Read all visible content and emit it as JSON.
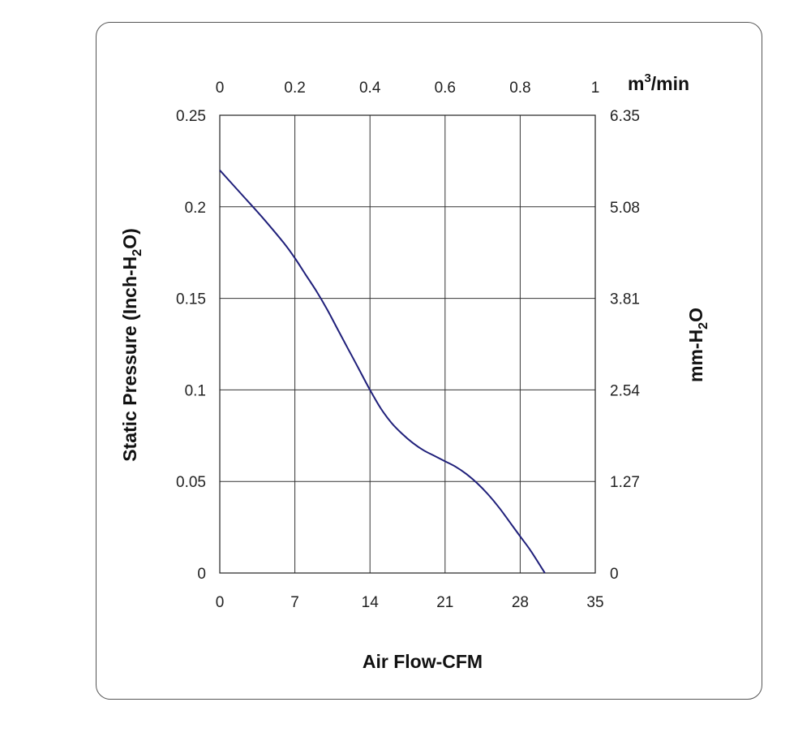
{
  "chart_data": {
    "type": "line",
    "xlabel": "Air Flow-CFM",
    "ylabel_parts": [
      "Static Pressure (Inch-H",
      "2",
      "O)"
    ],
    "y2label_parts": [
      "mm-H",
      "2",
      "O"
    ],
    "x2label_parts": [
      "m",
      "3",
      "/min"
    ],
    "xlim": [
      0,
      35
    ],
    "ylim": [
      0,
      0.25
    ],
    "x_ticks": [
      "0",
      "7",
      "14",
      "21",
      "28",
      "35"
    ],
    "y_ticks": [
      "0",
      "0.05",
      "0.1",
      "0.15",
      "0.2",
      "0.25"
    ],
    "x2_ticks": [
      "0",
      "0.2",
      "0.4",
      "0.6",
      "0.8",
      "1"
    ],
    "y2_ticks": [
      "0",
      "1.27",
      "2.54",
      "3.81",
      "5.08",
      "6.35"
    ],
    "grid": true,
    "line_color": "#1f1f7a",
    "series": [
      {
        "x": [
          0,
          2,
          4,
          6,
          7,
          8,
          9,
          10,
          11,
          12,
          13,
          14,
          15,
          16,
          17,
          18,
          19,
          20,
          21,
          22,
          23,
          24,
          25,
          26,
          27,
          28,
          29,
          30.3
        ],
        "y": [
          0.22,
          0.207,
          0.194,
          0.18,
          0.172,
          0.163,
          0.154,
          0.144,
          0.133,
          0.122,
          0.111,
          0.1,
          0.09,
          0.082,
          0.076,
          0.071,
          0.067,
          0.064,
          0.061,
          0.058,
          0.054,
          0.049,
          0.043,
          0.036,
          0.028,
          0.02,
          0.012,
          0.0
        ]
      }
    ]
  }
}
